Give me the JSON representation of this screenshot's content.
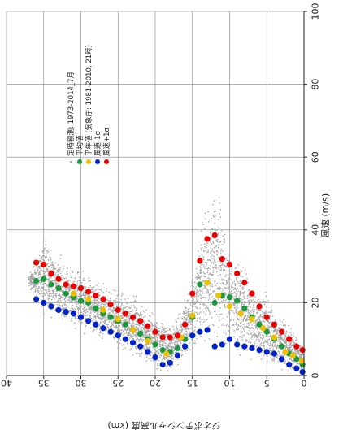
{
  "chart_data": {
    "type": "scatter",
    "title": "",
    "xlabel": "ジオポテンシャル高度 (km)",
    "ylabel": "風速 (m/s)",
    "xlim": [
      0,
      40
    ],
    "ylim": [
      0,
      100
    ],
    "x_ticks": [
      0,
      5,
      10,
      15,
      20,
      25,
      30,
      35,
      40
    ],
    "y_ticks": [
      0,
      20,
      40,
      60,
      80,
      100
    ],
    "grid": true,
    "legend_position": "top-left",
    "layout_note": "rotated 90° counter-clockwise: altitude runs along the bottom edge, wind speed along the right edge",
    "colors": {
      "obs": "#a6a6a6",
      "mean": "#1a9a3c",
      "normal": "#f0c000",
      "minus1s": "#0022cc",
      "plus1s": "#ee0000",
      "grid": "#808080"
    },
    "series": [
      {
        "name": "平均値",
        "color": "#1a9a3c",
        "points": [
          [
            0.2,
            3
          ],
          [
            1,
            4.5
          ],
          [
            2,
            6
          ],
          [
            3,
            8
          ],
          [
            4,
            10
          ],
          [
            5,
            12
          ],
          [
            6,
            14
          ],
          [
            7,
            16
          ],
          [
            8,
            18.5
          ],
          [
            9,
            20.5
          ],
          [
            10,
            21.5
          ],
          [
            11,
            22
          ],
          [
            12,
            20
          ],
          [
            13,
            25.5
          ],
          [
            14,
            25
          ],
          [
            15,
            16
          ],
          [
            16,
            10
          ],
          [
            17,
            7.5
          ],
          [
            18,
            6.5
          ],
          [
            19,
            7
          ],
          [
            20,
            8.5
          ],
          [
            21,
            10
          ],
          [
            22,
            11.5
          ],
          [
            23,
            12.5
          ],
          [
            24,
            14
          ],
          [
            25,
            15
          ],
          [
            26,
            16
          ],
          [
            27,
            17
          ],
          [
            28,
            18.5
          ],
          [
            29,
            20
          ],
          [
            30,
            20.5
          ],
          [
            31,
            21.5
          ],
          [
            32,
            22.5
          ],
          [
            33,
            24
          ],
          [
            34,
            25
          ],
          [
            35,
            26.5
          ],
          [
            36,
            26
          ]
        ]
      },
      {
        "name": "平年値 (気象庁: 1981-2010, 21時)",
        "color": "#f0c000",
        "points": [
          [
            0.3,
            4
          ],
          [
            1.5,
            5.5
          ],
          [
            2.5,
            6.5
          ],
          [
            4,
            10.5
          ],
          [
            5.5,
            13
          ],
          [
            7,
            15.5
          ],
          [
            8.5,
            17
          ],
          [
            10,
            19
          ],
          [
            11.5,
            22
          ],
          [
            13,
            25.5
          ],
          [
            15,
            16.5
          ],
          [
            16.5,
            10.5
          ],
          [
            18.5,
            6
          ],
          [
            21,
            9.5
          ],
          [
            23,
            12.5
          ],
          [
            25,
            15.5
          ],
          [
            27,
            18
          ],
          [
            29,
            21
          ],
          [
            31,
            22.5
          ]
        ]
      },
      {
        "name": "風速-1σ",
        "color": "#0022cc",
        "points": [
          [
            0.2,
            1
          ],
          [
            1,
            2
          ],
          [
            2,
            3
          ],
          [
            3,
            4.5
          ],
          [
            4,
            6
          ],
          [
            5,
            6.5
          ],
          [
            6,
            7
          ],
          [
            7,
            7.5
          ],
          [
            8,
            8
          ],
          [
            9,
            8.5
          ],
          [
            10,
            10
          ],
          [
            11,
            8.5
          ],
          [
            12,
            8
          ],
          [
            13,
            12.5
          ],
          [
            14,
            12
          ],
          [
            15,
            11
          ],
          [
            16,
            8
          ],
          [
            17,
            5.5
          ],
          [
            18,
            3.5
          ],
          [
            19,
            3
          ],
          [
            20,
            5
          ],
          [
            21,
            6.5
          ],
          [
            22,
            8
          ],
          [
            23,
            9
          ],
          [
            24,
            10
          ],
          [
            25,
            11
          ],
          [
            26,
            12
          ],
          [
            27,
            13
          ],
          [
            28,
            14
          ],
          [
            29,
            15
          ],
          [
            30,
            16
          ],
          [
            31,
            17
          ],
          [
            32,
            17.5
          ],
          [
            33,
            18
          ],
          [
            34,
            19
          ],
          [
            35,
            20
          ],
          [
            36,
            21
          ]
        ]
      },
      {
        "name": "風速+1σ",
        "color": "#ee0000",
        "points": [
          [
            0.2,
            7
          ],
          [
            1,
            8
          ],
          [
            2,
            10
          ],
          [
            3,
            12
          ],
          [
            4,
            14
          ],
          [
            5,
            16
          ],
          [
            6,
            19
          ],
          [
            7,
            22.5
          ],
          [
            8,
            25.5
          ],
          [
            9,
            28
          ],
          [
            10,
            30.5
          ],
          [
            11,
            32
          ],
          [
            12,
            38.5
          ],
          [
            13,
            37.5
          ],
          [
            14,
            31.5
          ],
          [
            15,
            22.5
          ],
          [
            16,
            14
          ],
          [
            17,
            11
          ],
          [
            18,
            10.5
          ],
          [
            19,
            10.5
          ],
          [
            20,
            12
          ],
          [
            21,
            13.5
          ],
          [
            22,
            15
          ],
          [
            23,
            16
          ],
          [
            24,
            17
          ],
          [
            25,
            18
          ],
          [
            26,
            19.5
          ],
          [
            27,
            21
          ],
          [
            28,
            22
          ],
          [
            29,
            23
          ],
          [
            30,
            24
          ],
          [
            31,
            24.5
          ],
          [
            32,
            25
          ],
          [
            33,
            26.5
          ],
          [
            34,
            28
          ],
          [
            35,
            30.5
          ],
          [
            36,
            31
          ]
        ]
      }
    ],
    "observations": {
      "name": "定時観測: 1973-2014_7月",
      "color": "#a6a6a6",
      "envelope": [
        [
          0,
          0,
          8
        ],
        [
          2,
          0,
          15
        ],
        [
          4,
          1,
          20
        ],
        [
          6,
          2,
          26
        ],
        [
          8,
          3,
          32
        ],
        [
          10,
          4,
          38
        ],
        [
          11,
          4,
          48
        ],
        [
          12,
          5,
          56
        ],
        [
          13,
          6,
          50
        ],
        [
          14,
          6,
          42
        ],
        [
          15,
          5,
          32
        ],
        [
          16,
          3,
          22
        ],
        [
          17,
          1,
          18
        ],
        [
          18,
          0,
          15
        ],
        [
          19,
          0,
          16
        ],
        [
          20,
          1,
          18
        ],
        [
          22,
          3,
          22
        ],
        [
          24,
          5,
          24
        ],
        [
          26,
          7,
          26
        ],
        [
          28,
          9,
          28
        ],
        [
          30,
          11,
          31
        ],
        [
          32,
          12,
          33
        ],
        [
          34,
          14,
          37
        ],
        [
          35,
          16,
          40
        ],
        [
          36,
          19,
          33
        ],
        [
          37,
          24,
          29
        ]
      ]
    }
  }
}
